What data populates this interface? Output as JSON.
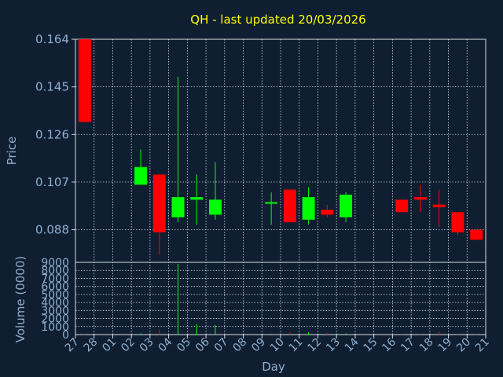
{
  "chart_data": {
    "type": "candlestick",
    "title": "QH - last updated 20/03/2026",
    "ylabel": "Price",
    "volume_label": "Volume (0000)",
    "xlabel": "Day",
    "price_ylim": [
      0.075,
      0.164
    ],
    "price_ticks": [
      "0.164",
      "0.145",
      "0.126",
      "0.107",
      "0.088"
    ],
    "volume_ylim": [
      0,
      9000
    ],
    "volume_ticks": [
      "9000",
      "8000",
      "7000",
      "6000",
      "5000",
      "4000",
      "3000",
      "2000",
      "1000",
      "0"
    ],
    "x_labels": [
      "27",
      "28",
      "01",
      "02",
      "03",
      "04",
      "05",
      "06",
      "07",
      "08",
      "09",
      "10",
      "11",
      "12",
      "13",
      "14",
      "15",
      "16",
      "17",
      "18",
      "19",
      "20",
      "21"
    ],
    "up_color": "#00ff00",
    "down_color": "#ff0000",
    "candles": [
      {
        "day": "27",
        "open": 0.164,
        "high": 0.164,
        "low": 0.131,
        "close": 0.131,
        "volume": 100
      },
      {
        "day": "02",
        "open": 0.106,
        "high": 0.12,
        "low": 0.106,
        "close": 0.113,
        "volume": 150
      },
      {
        "day": "03",
        "open": 0.11,
        "high": 0.11,
        "low": 0.078,
        "close": 0.087,
        "volume": 600
      },
      {
        "day": "04",
        "open": 0.093,
        "high": 0.149,
        "low": 0.091,
        "close": 0.101,
        "volume": 8800
      },
      {
        "day": "05",
        "open": 0.1,
        "high": 0.11,
        "low": 0.09,
        "close": 0.101,
        "volume": 1300
      },
      {
        "day": "06",
        "open": 0.094,
        "high": 0.115,
        "low": 0.092,
        "close": 0.1,
        "volume": 1200
      },
      {
        "day": "09",
        "open": 0.099,
        "high": 0.103,
        "low": 0.09,
        "close": 0.099,
        "volume": 100
      },
      {
        "day": "10",
        "open": 0.104,
        "high": 0.104,
        "low": 0.091,
        "close": 0.091,
        "volume": 300
      },
      {
        "day": "11",
        "open": 0.092,
        "high": 0.105,
        "low": 0.09,
        "close": 0.101,
        "volume": 300
      },
      {
        "day": "12",
        "open": 0.096,
        "high": 0.098,
        "low": 0.093,
        "close": 0.094,
        "volume": 200
      },
      {
        "day": "13",
        "open": 0.093,
        "high": 0.103,
        "low": 0.091,
        "close": 0.102,
        "volume": 150
      },
      {
        "day": "16",
        "open": 0.1,
        "high": 0.1,
        "low": 0.095,
        "close": 0.095,
        "volume": 100
      },
      {
        "day": "17",
        "open": 0.101,
        "high": 0.106,
        "low": 0.095,
        "close": 0.1,
        "volume": 100
      },
      {
        "day": "18",
        "open": 0.098,
        "high": 0.104,
        "low": 0.089,
        "close": 0.097,
        "volume": 400
      },
      {
        "day": "19",
        "open": 0.095,
        "high": 0.095,
        "low": 0.086,
        "close": 0.087,
        "volume": 100
      },
      {
        "day": "20",
        "open": 0.088,
        "high": 0.088,
        "low": 0.084,
        "close": 0.084,
        "volume": 100
      }
    ]
  }
}
